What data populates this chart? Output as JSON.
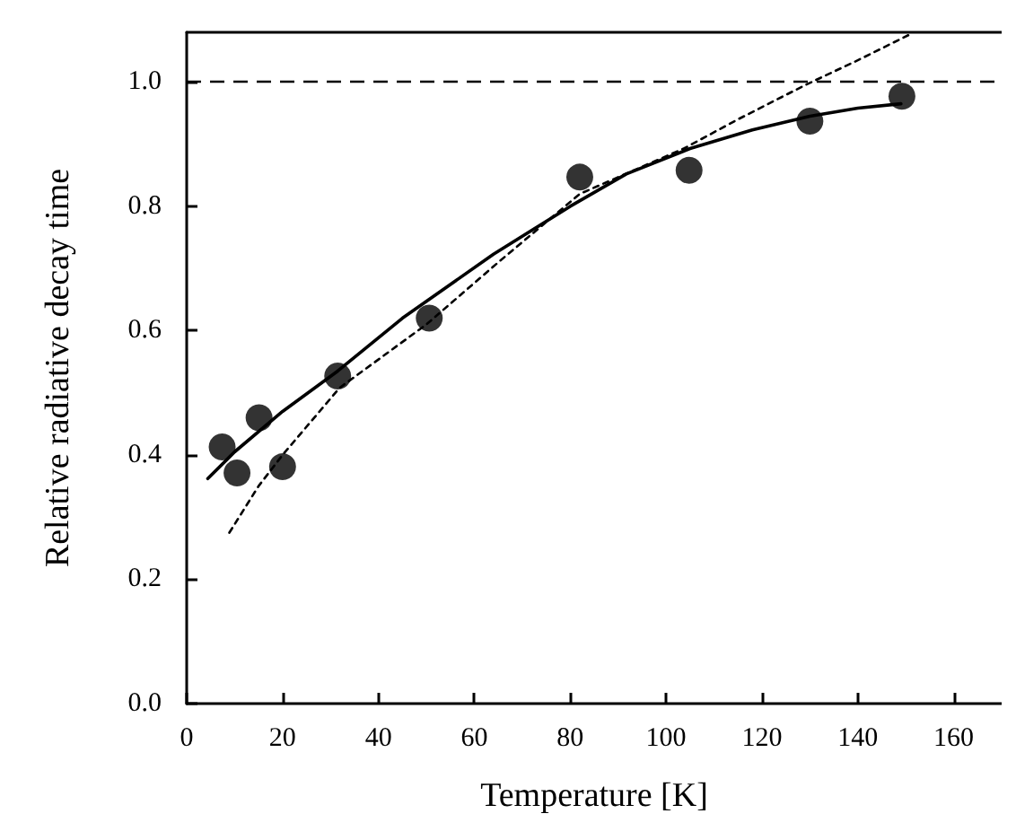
{
  "chart_data": {
    "type": "scatter",
    "xlabel": "Temperature [K]",
    "ylabel": "Relative radiative decay time",
    "xlim": [
      0,
      170
    ],
    "xticks": [
      0,
      20,
      40,
      60,
      80,
      100,
      120,
      140,
      160
    ],
    "ylim": [
      0,
      1.08
    ],
    "yticks": [
      {
        "value": 0,
        "label": "0.0"
      },
      {
        "value": 0.2,
        "label": "0.2"
      },
      {
        "value": 0.4,
        "label": "0.4"
      },
      {
        "value": 0.6,
        "label": "0.6"
      },
      {
        "value": 0.8,
        "label": "0.8"
      },
      {
        "value": 1,
        "label": "1.0"
      }
    ],
    "grid": false,
    "series": [
      {
        "color": "#000000",
        "marker": "circle",
        "x": [
          7.4,
          10.5,
          15.1,
          20,
          31.5,
          50.6,
          82,
          104.8,
          130,
          149.2
        ],
        "values": [
          0.413,
          0.371,
          0.46,
          0.381,
          0.527,
          0.62,
          0.847,
          0.858,
          0.937,
          0.977
        ]
      },
      {
        "type": "line",
        "color": "#000000",
        "marker": "none",
        "line_style": "solid",
        "x": [
          4.4,
          10,
          20,
          31.5,
          45,
          64,
          80,
          91.7,
          105,
          118,
          130,
          140,
          149
        ],
        "values": [
          0.362,
          0.405,
          0.47,
          0.535,
          0.62,
          0.723,
          0.8,
          0.852,
          0.893,
          0.923,
          0.945,
          0.958,
          0.965
        ]
      },
      {
        "type": "line",
        "color": "#000000",
        "marker": "none",
        "line_style": "dotted",
        "x": [
          8.9,
          15,
          20,
          31.9,
          50,
          65,
          82,
          103.7,
          115,
          129,
          140,
          150.7
        ],
        "values": [
          0.275,
          0.35,
          0.4,
          0.508,
          0.61,
          0.71,
          0.82,
          0.893,
          0.94,
          0.995,
          1.035,
          1.076
        ]
      }
    ],
    "ref_lines": [
      {
        "axis": "y",
        "value": 1,
        "line_style": "dashed",
        "color": "#000000"
      }
    ]
  }
}
